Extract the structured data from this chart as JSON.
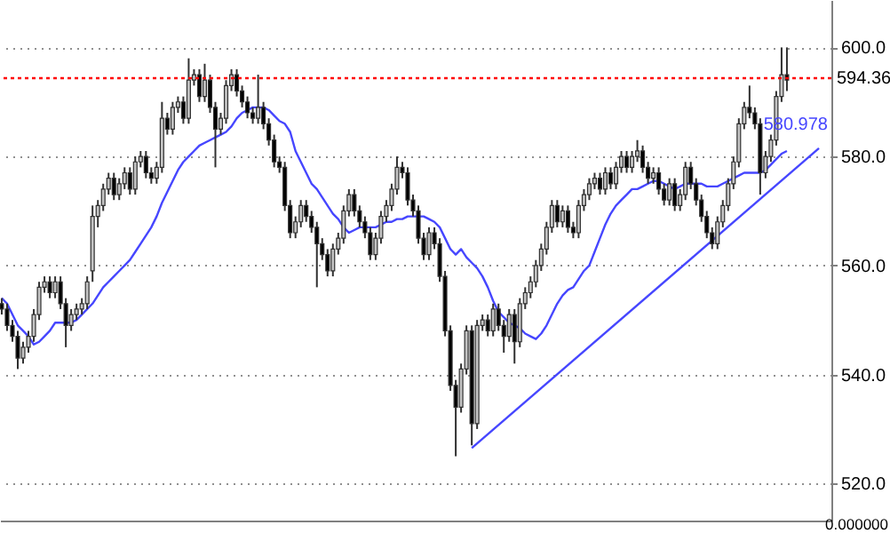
{
  "chart_data": {
    "type": "candlestick",
    "categories": [
      null,
      null,
      null,
      null,
      null,
      null,
      null,
      null,
      null,
      null,
      null,
      null,
      null,
      null,
      null,
      null,
      null,
      null,
      null,
      null,
      null,
      null,
      null,
      null,
      null,
      null,
      null,
      null,
      null,
      null,
      null,
      null,
      null,
      null,
      null,
      null,
      null,
      null,
      null,
      null,
      null,
      null,
      null,
      null,
      null,
      null,
      null,
      null,
      null,
      null,
      null,
      null,
      null,
      null,
      null,
      null,
      null,
      null,
      null,
      null,
      null,
      null,
      null,
      null,
      null,
      null,
      null,
      null,
      null,
      null,
      null,
      null,
      null,
      null,
      null,
      null,
      null,
      null,
      null,
      null,
      null,
      null,
      null,
      null,
      null,
      null,
      null,
      null,
      null,
      null,
      null,
      null,
      null,
      null,
      null,
      null,
      null,
      null,
      null,
      null,
      null,
      null,
      null,
      null,
      null,
      null,
      null,
      null,
      null,
      null,
      null,
      null,
      null,
      null,
      null,
      null,
      null,
      null,
      null,
      null,
      null,
      null,
      null,
      null,
      null,
      null,
      null,
      null,
      null,
      null,
      null,
      null,
      null,
      null,
      null,
      null,
      null,
      null,
      null,
      null,
      null,
      null,
      null,
      null,
      null,
      null,
      null,
      null,
      null,
      null,
      null,
      null,
      null,
      null,
      null,
      null
    ],
    "ohlc": [
      [
        553,
        554,
        551,
        552
      ],
      [
        552,
        553,
        548,
        549
      ],
      [
        549,
        550,
        546,
        547
      ],
      [
        547,
        548,
        541,
        543
      ],
      [
        543,
        546,
        542,
        545
      ],
      [
        545,
        548,
        544,
        547
      ],
      [
        547,
        552,
        546,
        551
      ],
      [
        551,
        557,
        550,
        556
      ],
      [
        556,
        558,
        555,
        557
      ],
      [
        557,
        558,
        554,
        555
      ],
      [
        555,
        558,
        554,
        557
      ],
      [
        557,
        558,
        552,
        553
      ],
      [
        553,
        554,
        545,
        549
      ],
      [
        549,
        552,
        548,
        551
      ],
      [
        551,
        553,
        550,
        552
      ],
      [
        552,
        554,
        551,
        553
      ],
      [
        553,
        558,
        552,
        557
      ],
      [
        559,
        571,
        557,
        569
      ],
      [
        569,
        572,
        567,
        571
      ],
      [
        571,
        575,
        570,
        574
      ],
      [
        574,
        577,
        573,
        576
      ],
      [
        576,
        577,
        572,
        573
      ],
      [
        573,
        576,
        572,
        575
      ],
      [
        575,
        578,
        574,
        577
      ],
      [
        577,
        578,
        573,
        574
      ],
      [
        574,
        580,
        573,
        579
      ],
      [
        579,
        581,
        578,
        580
      ],
      [
        580,
        581,
        576,
        577
      ],
      [
        577,
        578,
        575,
        576
      ],
      [
        576,
        579,
        575,
        578
      ],
      [
        578,
        590,
        577,
        587
      ],
      [
        587,
        588,
        584,
        585
      ],
      [
        585,
        590,
        584,
        589
      ],
      [
        589,
        591,
        588,
        590
      ],
      [
        590,
        591,
        586,
        587
      ],
      [
        587,
        598,
        586,
        594
      ],
      [
        594,
        596,
        593,
        595
      ],
      [
        595,
        596,
        590,
        591
      ],
      [
        591,
        597,
        590,
        594
      ],
      [
        594,
        595,
        588,
        589
      ],
      [
        589,
        590,
        578,
        585
      ],
      [
        585,
        588,
        584,
        587
      ],
      [
        587,
        594,
        586,
        593
      ],
      [
        593,
        596,
        592,
        595
      ],
      [
        595,
        596,
        591,
        592
      ],
      [
        592,
        593,
        589,
        590
      ],
      [
        590,
        591,
        587,
        588
      ],
      [
        588,
        589,
        586,
        587
      ],
      [
        587,
        595,
        586,
        589
      ],
      [
        589,
        590,
        585,
        586
      ],
      [
        586,
        587,
        582,
        583
      ],
      [
        583,
        584,
        578,
        579
      ],
      [
        579,
        580,
        577,
        578
      ],
      [
        578,
        579,
        570,
        571
      ],
      [
        571,
        572,
        565,
        566
      ],
      [
        566,
        569,
        565,
        568
      ],
      [
        568,
        572,
        567,
        571
      ],
      [
        571,
        572,
        568,
        569
      ],
      [
        569,
        570,
        566,
        567
      ],
      [
        567,
        568,
        556,
        564
      ],
      [
        564,
        565,
        561,
        562
      ],
      [
        562,
        563,
        558,
        559
      ],
      [
        559,
        564,
        558,
        563
      ],
      [
        563,
        566,
        562,
        565
      ],
      [
        565,
        571,
        564,
        570
      ],
      [
        570,
        574,
        569,
        573
      ],
      [
        573,
        574,
        569,
        570
      ],
      [
        570,
        571,
        567,
        568
      ],
      [
        568,
        569,
        565,
        566
      ],
      [
        566,
        567,
        561,
        562
      ],
      [
        562,
        566,
        561,
        565
      ],
      [
        565,
        570,
        564,
        569
      ],
      [
        569,
        572,
        568,
        571
      ],
      [
        571,
        575,
        570,
        574
      ],
      [
        574,
        580,
        573,
        578
      ],
      [
        578,
        579,
        576,
        577
      ],
      [
        577,
        578,
        571,
        572
      ],
      [
        572,
        573,
        569,
        570
      ],
      [
        570,
        571,
        564,
        565
      ],
      [
        565,
        566,
        561,
        562
      ],
      [
        562,
        567,
        561,
        566
      ],
      [
        566,
        567,
        563,
        564
      ],
      [
        564,
        565,
        557,
        558
      ],
      [
        558,
        559,
        547,
        548
      ],
      [
        548,
        549,
        537,
        538
      ],
      [
        538,
        539,
        525,
        534
      ],
      [
        534,
        542,
        533,
        541
      ],
      [
        541,
        549,
        540,
        548
      ],
      [
        548,
        549,
        527,
        531
      ],
      [
        531,
        550,
        530,
        549
      ],
      [
        549,
        551,
        548,
        550
      ],
      [
        550,
        551,
        547,
        548
      ],
      [
        548,
        553,
        547,
        552
      ],
      [
        552,
        553,
        548,
        549
      ],
      [
        549,
        550,
        544,
        547
      ],
      [
        547,
        552,
        546,
        551
      ],
      [
        551,
        552,
        542,
        546
      ],
      [
        546,
        554,
        545,
        553
      ],
      [
        553,
        556,
        552,
        555
      ],
      [
        555,
        558,
        554,
        557
      ],
      [
        557,
        561,
        556,
        560
      ],
      [
        560,
        564,
        559,
        563
      ],
      [
        563,
        568,
        562,
        567
      ],
      [
        567,
        572,
        566,
        571
      ],
      [
        571,
        572,
        567,
        568
      ],
      [
        568,
        571,
        567,
        570
      ],
      [
        570,
        571,
        566,
        567
      ],
      [
        567,
        568,
        565,
        566
      ],
      [
        566,
        572,
        565,
        571
      ],
      [
        571,
        574,
        570,
        573
      ],
      [
        573,
        576,
        572,
        575
      ],
      [
        575,
        577,
        574,
        576
      ],
      [
        576,
        577,
        573,
        574
      ],
      [
        574,
        578,
        573,
        577
      ],
      [
        577,
        578,
        574,
        575
      ],
      [
        575,
        579,
        574,
        578
      ],
      [
        578,
        581,
        577,
        580
      ],
      [
        580,
        581,
        577,
        578
      ],
      [
        578,
        581,
        577,
        580
      ],
      [
        580,
        583,
        579,
        581
      ],
      [
        581,
        582,
        577,
        578
      ],
      [
        578,
        579,
        575,
        576
      ],
      [
        576,
        578,
        575,
        577
      ],
      [
        577,
        578,
        573,
        574
      ],
      [
        574,
        575,
        571,
        572
      ],
      [
        572,
        576,
        571,
        575
      ],
      [
        575,
        576,
        570,
        571
      ],
      [
        571,
        574,
        570,
        573
      ],
      [
        573,
        579,
        572,
        578
      ],
      [
        578,
        579,
        574,
        575
      ],
      [
        575,
        576,
        571,
        572
      ],
      [
        572,
        573,
        568,
        569
      ],
      [
        569,
        570,
        565,
        566
      ],
      [
        566,
        567,
        563,
        564
      ],
      [
        564,
        569,
        563,
        568
      ],
      [
        568,
        572,
        567,
        571
      ],
      [
        571,
        576,
        570,
        575
      ],
      [
        575,
        580,
        574,
        579
      ],
      [
        579,
        587,
        578,
        586
      ],
      [
        586,
        590,
        585,
        589
      ],
      [
        589,
        593,
        587,
        588
      ],
      [
        588,
        589,
        585,
        586
      ],
      [
        586,
        587,
        573,
        577
      ],
      [
        577,
        581,
        576,
        580
      ],
      [
        580,
        584,
        579,
        583
      ],
      [
        583,
        592,
        582,
        591
      ],
      [
        591,
        600,
        590,
        595
      ],
      [
        595,
        600,
        592,
        594
      ],
      null,
      null,
      null,
      null,
      null,
      null,
      null,
      null
    ],
    "series": [
      {
        "type": "line",
        "color": "#4646ff",
        "values": [
          554,
          553,
          551,
          549,
          548,
          547,
          545.5,
          546,
          547,
          548,
          549.5,
          549.5,
          549.5,
          549.5,
          550,
          551,
          552,
          553,
          554.5,
          556,
          557,
          558,
          559,
          560,
          561,
          562.5,
          564,
          565.5,
          567,
          569,
          571.5,
          573.5,
          575.5,
          577.5,
          579,
          580,
          581,
          582,
          582.5,
          583,
          583.5,
          584,
          584.5,
          585.5,
          587,
          588,
          588.5,
          589,
          589,
          589,
          588.5,
          587.5,
          586.5,
          586,
          584.5,
          581,
          579,
          577,
          575,
          574,
          572.5,
          571,
          569.5,
          568.5,
          567,
          566,
          566.5,
          567,
          567,
          567,
          567,
          567.5,
          568,
          568,
          568.5,
          568.5,
          569,
          569,
          569,
          569,
          568.5,
          568,
          567,
          565,
          563,
          562,
          563,
          561.5,
          560.5,
          559.5,
          558,
          556,
          553.5,
          551.5,
          550.5,
          549.5,
          549,
          548.5,
          547.5,
          547,
          546.5,
          547.5,
          549,
          551,
          553,
          554.5,
          555.5,
          556,
          557.5,
          559,
          560,
          562.5,
          565,
          567.5,
          569.5,
          571,
          572,
          573,
          574,
          574,
          574.5,
          575,
          575.5,
          575.5,
          575,
          574.5,
          574,
          574.5,
          575,
          575,
          575,
          575,
          574.5,
          574.5,
          574.5,
          575,
          575.5,
          576,
          576.5,
          577,
          577,
          577,
          577,
          577.5,
          578.5,
          579.5,
          580.5,
          581,
          null,
          null,
          null,
          null,
          null,
          null,
          null,
          null
        ]
      },
      {
        "type": "line",
        "color": "#4646ff",
        "values": [
          null,
          null,
          null,
          null,
          null,
          null,
          null,
          null,
          null,
          null,
          null,
          null,
          null,
          null,
          null,
          null,
          null,
          null,
          null,
          null,
          null,
          null,
          null,
          null,
          null,
          null,
          null,
          null,
          null,
          null,
          null,
          null,
          null,
          null,
          null,
          null,
          null,
          null,
          null,
          null,
          null,
          null,
          null,
          null,
          null,
          null,
          null,
          null,
          null,
          null,
          null,
          null,
          null,
          null,
          null,
          null,
          null,
          null,
          null,
          null,
          null,
          null,
          null,
          null,
          null,
          null,
          null,
          null,
          null,
          null,
          null,
          null,
          null,
          null,
          null,
          null,
          null,
          null,
          null,
          null,
          null,
          null,
          null,
          null,
          null,
          null,
          null,
          null,
          526.5,
          null,
          null,
          null,
          null,
          null,
          null,
          null,
          null,
          null,
          null,
          null,
          null,
          null,
          null,
          null,
          null,
          null,
          null,
          null,
          null,
          null,
          null,
          null,
          null,
          null,
          null,
          null,
          null,
          null,
          null,
          null,
          null,
          null,
          null,
          null,
          null,
          null,
          null,
          null,
          null,
          null,
          null,
          null,
          null,
          null,
          null,
          null,
          null,
          null,
          null,
          null,
          null,
          null,
          null,
          null,
          null,
          null,
          null,
          null,
          null,
          null,
          null,
          null,
          null,
          581.5,
          null,
          null
        ]
      }
    ],
    "ylim": [
      513.2,
      608.7
    ],
    "yticks": [
      {
        "value": 520,
        "label": "520.0"
      },
      {
        "value": 540,
        "label": "540.0"
      },
      {
        "value": 560,
        "label": "560.0"
      },
      {
        "value": 580,
        "label": "580.0"
      },
      {
        "value": 600,
        "label": "600.0"
      }
    ],
    "ref_lines": [
      {
        "axis": "y",
        "value": 594.36,
        "label": "594.36",
        "color": "#ff0000",
        "line_style": "dotted"
      }
    ],
    "annotations": [
      {
        "text": "580.978",
        "y": 580.978
      },
      "0.000000"
    ],
    "grid": "y",
    "tick_labels": "y"
  }
}
